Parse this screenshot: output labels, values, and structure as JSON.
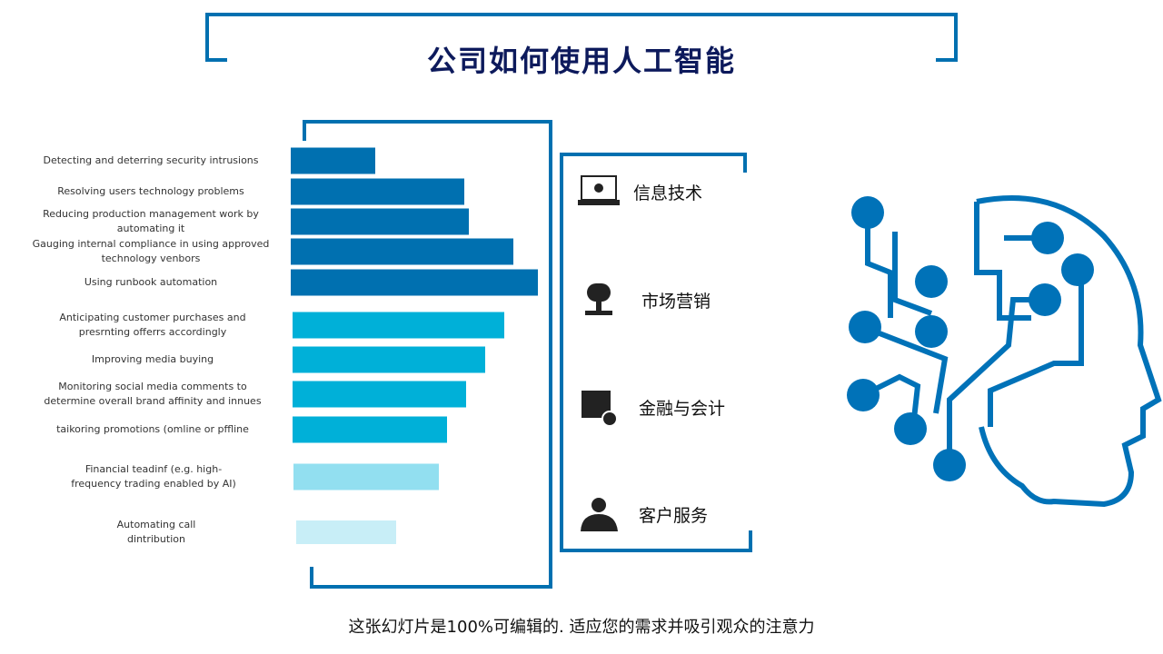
{
  "header": {
    "title": "公司如何使用人工智能"
  },
  "chart_data": {
    "type": "bar",
    "orientation": "horizontal",
    "categories": [
      "Detecting and deterring security intrusions",
      "Resolving users technology problems",
      "Reducing production management work by\nautomating it",
      "Gauging internal compliance in using approved\ntechnology venbors",
      "Using runbook automation",
      "Anticipating customer purchases and\npresrnting offerrs accordingly",
      "Improving media buying",
      "Monitoring social media comments to\ndetermine overall brand affinity and innues",
      "taikoring promotions (omline or pffline",
      "Financial  teadinf (e.g. high-\nfrequency trading enabled by AI)",
      "Automating call\ndintribution"
    ],
    "values": [
      93,
      191,
      196,
      245,
      272,
      233,
      212,
      191,
      170,
      160,
      110
    ],
    "colors": [
      "#0070b0",
      "#0070b0",
      "#0070b0",
      "#0070b0",
      "#0070b0",
      "#00b0d8",
      "#00b0d8",
      "#00b0d8",
      "#00b0d8",
      "#92dff0",
      "#c8eef7"
    ]
  },
  "departments": [
    "信息技术",
    "市场营销",
    "金融与会计",
    "客户服务"
  ],
  "footer": "这张幻灯片是100%可编辑的. 适应您的需求并吸引观众的注意力"
}
